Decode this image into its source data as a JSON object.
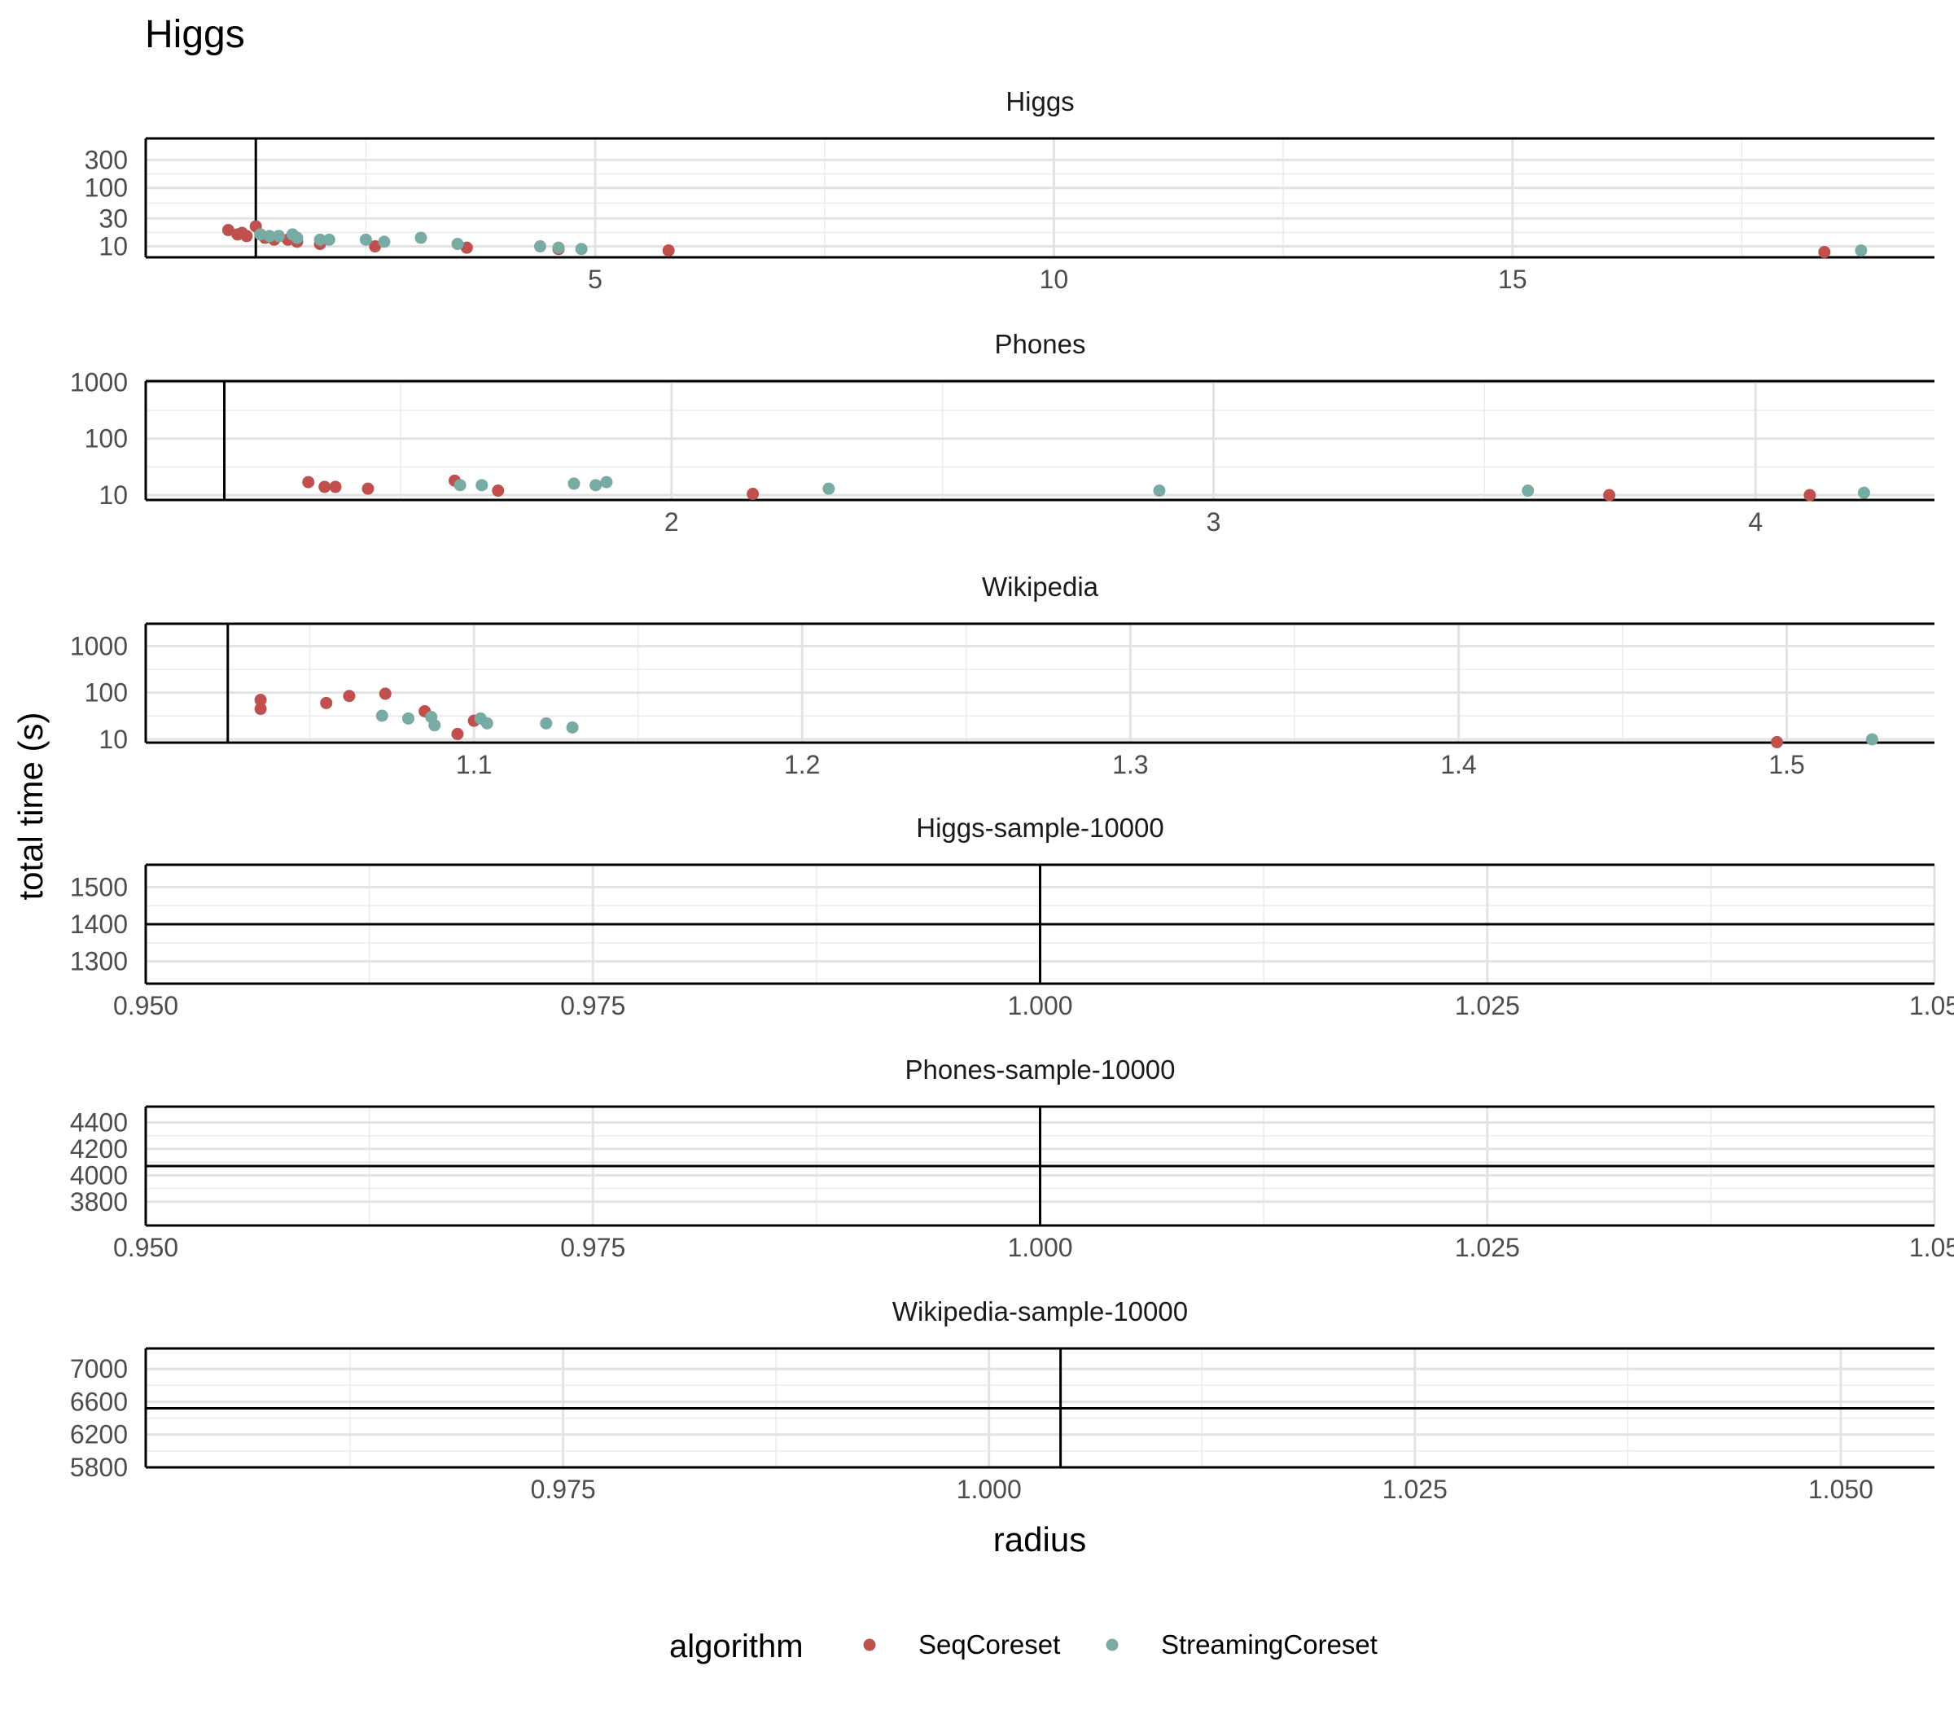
{
  "chart_data": {
    "type": "scatter",
    "title": "Higgs",
    "xlabel": "radius",
    "ylabel": "total time (s)",
    "legend": {
      "title": "algorithm",
      "placement": "bottom",
      "entries": [
        {
          "name": "SeqCoreset",
          "color": "#c0504d"
        },
        {
          "name": "StreamingCoreset",
          "color": "#79aba5"
        }
      ]
    },
    "grid": true,
    "panels": [
      {
        "title": "Higgs",
        "y_scale": "log",
        "xlim": [
          0.1,
          19.6
        ],
        "ylim": [
          6.5,
          700
        ],
        "x_ticks": [
          5,
          10,
          15
        ],
        "x_tick_labels": [
          "5",
          "10",
          "15"
        ],
        "y_ticks": [
          10,
          30,
          100,
          300
        ],
        "y_tick_labels": [
          "10",
          "30",
          "100",
          "300"
        ],
        "reference_x": 1.3,
        "series": [
          {
            "name": "SeqCoreset",
            "points": [
              [
                1.0,
                19
              ],
              [
                1.1,
                16
              ],
              [
                1.15,
                17
              ],
              [
                1.2,
                15
              ],
              [
                1.3,
                22
              ],
              [
                1.35,
                16
              ],
              [
                1.4,
                14
              ],
              [
                1.5,
                13
              ],
              [
                1.55,
                15
              ],
              [
                1.65,
                13
              ],
              [
                1.75,
                12
              ],
              [
                2.0,
                11
              ],
              [
                2.6,
                10
              ],
              [
                3.6,
                9.5
              ],
              [
                4.6,
                9
              ],
              [
                5.8,
                8.5
              ],
              [
                18.4,
                8
              ]
            ]
          },
          {
            "name": "SeqCoreset",
            "points": []
          },
          {
            "name": "StreamingCoreset",
            "points": [
              [
                1.35,
                16
              ],
              [
                1.45,
                15
              ],
              [
                1.55,
                15
              ],
              [
                1.7,
                16
              ],
              [
                1.75,
                14
              ],
              [
                2.0,
                13
              ],
              [
                2.1,
                13
              ],
              [
                2.5,
                13
              ],
              [
                2.7,
                12
              ],
              [
                3.1,
                14
              ],
              [
                3.5,
                11
              ],
              [
                4.4,
                10
              ],
              [
                4.6,
                9.5
              ],
              [
                4.85,
                9
              ],
              [
                18.8,
                8.5
              ]
            ]
          }
        ]
      },
      {
        "title": "Phones",
        "y_scale": "log",
        "xlim": [
          1.03,
          4.33
        ],
        "ylim": [
          8.2,
          1050
        ],
        "x_ticks": [
          2,
          3,
          4
        ],
        "x_tick_labels": [
          "2",
          "3",
          "4"
        ],
        "y_ticks": [
          10,
          100,
          1000
        ],
        "y_tick_labels": [
          "10",
          "100",
          "1000"
        ],
        "reference_x": 1.175,
        "series": [
          {
            "name": "SeqCoreset",
            "points": [
              [
                1.33,
                17
              ],
              [
                1.36,
                14
              ],
              [
                1.38,
                14
              ],
              [
                1.44,
                13
              ],
              [
                1.6,
                18
              ],
              [
                1.68,
                12
              ],
              [
                2.15,
                10.5
              ],
              [
                3.73,
                10
              ],
              [
                4.1,
                10
              ]
            ]
          },
          {
            "name": "StreamingCoreset",
            "points": [
              [
                1.61,
                15
              ],
              [
                1.65,
                15
              ],
              [
                1.82,
                16
              ],
              [
                1.86,
                15
              ],
              [
                1.88,
                17
              ],
              [
                2.29,
                13
              ],
              [
                2.9,
                12
              ],
              [
                3.58,
                12
              ],
              [
                4.2,
                11
              ]
            ]
          }
        ]
      },
      {
        "title": "Wikipedia",
        "y_scale": "log",
        "xlim": [
          1.0,
          1.545
        ],
        "ylim": [
          8.5,
          3000
        ],
        "x_ticks": [
          1.1,
          1.2,
          1.3,
          1.4,
          1.5
        ],
        "x_tick_labels": [
          "1.1",
          "1.2",
          "1.3",
          "1.4",
          "1.5"
        ],
        "y_ticks": [
          10,
          100,
          1000
        ],
        "y_tick_labels": [
          "10",
          "100",
          "1000"
        ],
        "reference_x": 1.025,
        "series": [
          {
            "name": "SeqCoreset",
            "points": [
              [
                1.035,
                70
              ],
              [
                1.035,
                45
              ],
              [
                1.055,
                60
              ],
              [
                1.062,
                85
              ],
              [
                1.073,
                95
              ],
              [
                1.085,
                40
              ],
              [
                1.095,
                13
              ],
              [
                1.1,
                25
              ],
              [
                1.497,
                8.7
              ]
            ]
          },
          {
            "name": "StreamingCoreset",
            "points": [
              [
                1.072,
                32
              ],
              [
                1.08,
                28
              ],
              [
                1.087,
                30
              ],
              [
                1.088,
                20
              ],
              [
                1.102,
                28
              ],
              [
                1.104,
                22
              ],
              [
                1.122,
                22
              ],
              [
                1.13,
                18
              ],
              [
                1.526,
                10
              ]
            ]
          }
        ]
      },
      {
        "title": "Higgs-sample-10000",
        "y_scale": "linear",
        "xlim": [
          0.95,
          1.05
        ],
        "ylim": [
          1240,
          1560
        ],
        "x_ticks": [
          0.95,
          0.975,
          1.0,
          1.025,
          1.05
        ],
        "x_tick_labels": [
          "0.950",
          "0.975",
          "1.000",
          "1.025",
          "1.05"
        ],
        "y_ticks": [
          1300,
          1400,
          1500
        ],
        "y_tick_labels": [
          "1300",
          "1400",
          "1500"
        ],
        "reference_x": 1.0,
        "reference_y": 1400,
        "series": []
      },
      {
        "title": "Phones-sample-10000",
        "y_scale": "linear",
        "xlim": [
          0.95,
          1.05
        ],
        "ylim": [
          3620,
          4520
        ],
        "x_ticks": [
          0.95,
          0.975,
          1.0,
          1.025,
          1.05
        ],
        "x_tick_labels": [
          "0.950",
          "0.975",
          "1.000",
          "1.025",
          "1.05"
        ],
        "y_ticks": [
          3800,
          4000,
          4200,
          4400
        ],
        "y_tick_labels": [
          "3800",
          "4000",
          "4200",
          "4400"
        ],
        "reference_x": 1.0,
        "reference_y": 4070,
        "series": []
      },
      {
        "title": "Wikipedia-sample-10000",
        "y_scale": "linear",
        "xlim": [
          0.9505,
          1.0555
        ],
        "ylim": [
          5800,
          7250
        ],
        "x_ticks": [
          0.975,
          1.0,
          1.025,
          1.05
        ],
        "x_tick_labels": [
          "0.975",
          "1.000",
          "1.025",
          "1.050"
        ],
        "y_ticks": [
          5800,
          6200,
          6600,
          7000
        ],
        "y_tick_labels": [
          "5800",
          "6200",
          "6600",
          "7000"
        ],
        "reference_x": 1.0042,
        "reference_y": 6520,
        "series": []
      }
    ]
  }
}
